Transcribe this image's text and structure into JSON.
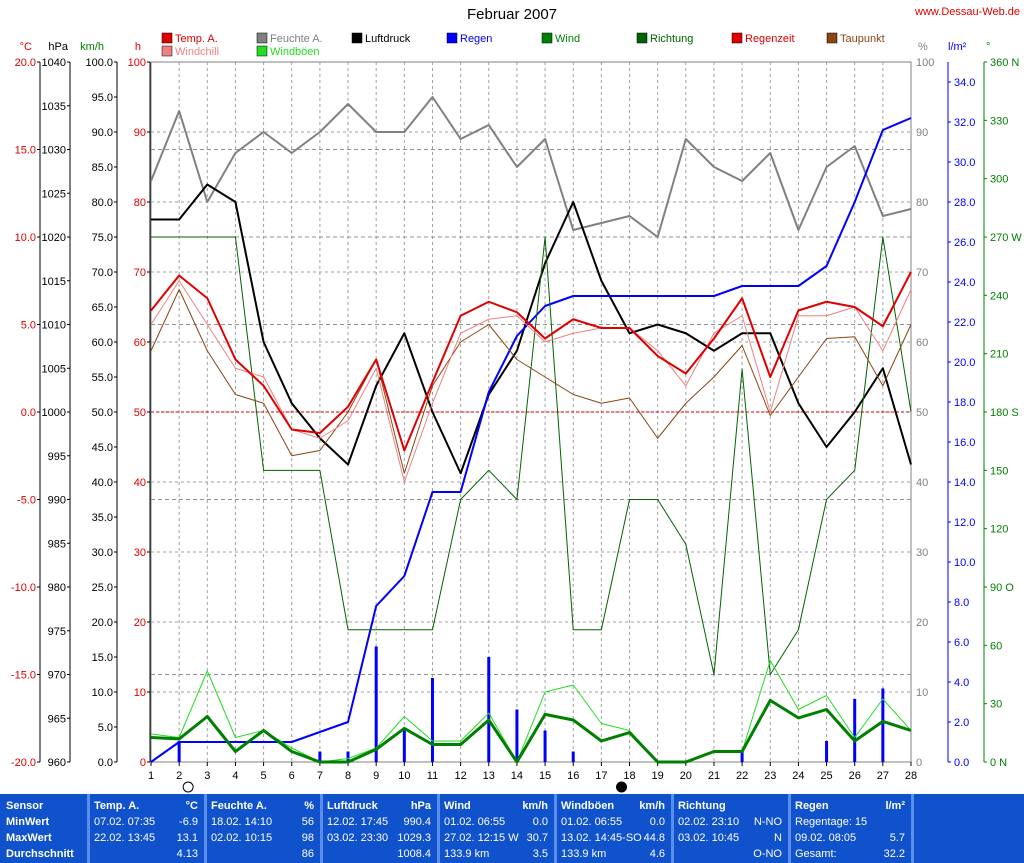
{
  "title": "Februar 2007",
  "site": "www.Dessau-Web.de",
  "legend": [
    {
      "label": "Temp. A.",
      "color": "#e00000"
    },
    {
      "label": "Windchill",
      "color": "#f08080"
    },
    {
      "label": "Feuchte A.",
      "color": "#808080"
    },
    {
      "label": "Windböen",
      "color": "#22dd22"
    },
    {
      "label": "Luftdruck",
      "color": "#000000"
    },
    {
      "label": "Regen",
      "color": "#0000ff"
    },
    {
      "label": "Wind",
      "color": "#008000"
    },
    {
      "label": "Richtung",
      "color": "#006400"
    },
    {
      "label": "Regenzeit",
      "color": "#e00000"
    },
    {
      "label": "Taupunkt",
      "color": "#8b4513"
    }
  ],
  "axis_units": {
    "temp": "°C",
    "pressure": "hPa",
    "wind": "km/h",
    "hours": "h",
    "humidity": "%",
    "rain": "l/m²",
    "direction": "°"
  },
  "chart_data": {
    "type": "line",
    "title": "Februar 2007",
    "x": [
      1,
      2,
      3,
      4,
      5,
      6,
      7,
      8,
      9,
      10,
      11,
      12,
      13,
      14,
      15,
      16,
      17,
      18,
      19,
      20,
      21,
      22,
      23,
      24,
      25,
      26,
      27,
      28
    ],
    "axes": {
      "temp": {
        "label": "°C",
        "ylim": [
          -20,
          20
        ],
        "ticks": [
          "20.0",
          "15.0",
          "10.0",
          "5.0",
          "0.0",
          "-5.0",
          "-10.0",
          "-15.0",
          "-20.0"
        ]
      },
      "pressure": {
        "label": "hPa",
        "ylim": [
          960,
          1040
        ],
        "ticks": [
          "1040",
          "1035",
          "1030",
          "1025",
          "1020",
          "1015",
          "1010",
          "1005",
          "1000",
          "995",
          "990",
          "985",
          "980",
          "975",
          "970",
          "965",
          "960"
        ]
      },
      "wind": {
        "label": "km/h",
        "ylim": [
          0,
          100
        ],
        "ticks": [
          "100.0",
          "95.0",
          "90.0",
          "85.0",
          "80.0",
          "75.0",
          "70.0",
          "65.0",
          "60.0",
          "55.0",
          "50.0",
          "45.0",
          "40.0",
          "35.0",
          "30.0",
          "25.0",
          "20.0",
          "15.0",
          "10.0",
          "5.0",
          "0.0"
        ]
      },
      "hours": {
        "label": "h",
        "ylim": [
          0,
          100
        ],
        "ticks": [
          "100",
          "90",
          "80",
          "70",
          "60",
          "50",
          "40",
          "30",
          "20",
          "10",
          "0"
        ]
      },
      "humidity": {
        "label": "%",
        "ylim": [
          0,
          100
        ],
        "ticks": [
          "100",
          "90",
          "80",
          "70",
          "60",
          "50",
          "40",
          "30",
          "20",
          "10",
          "0"
        ]
      },
      "rain": {
        "label": "l/m²",
        "ylim": [
          0,
          35
        ],
        "ticks": [
          "34.0",
          "32.0",
          "30.0",
          "28.0",
          "26.0",
          "24.0",
          "22.0",
          "20.0",
          "18.0",
          "16.0",
          "14.0",
          "12.0",
          "10.0",
          "8.0",
          "6.0",
          "4.0",
          "2.0",
          "0.0"
        ]
      },
      "direction": {
        "label": "°",
        "ylim": [
          0,
          360
        ],
        "ticks": [
          "360 N",
          "330",
          "300",
          "270 W",
          "240",
          "210",
          "180 S",
          "150",
          "120",
          "90 O",
          "60",
          "30",
          "0 N"
        ]
      }
    },
    "series": [
      {
        "name": "Feuchte A.",
        "axis": "humidity",
        "color": "#808080",
        "width": 2,
        "values": [
          83,
          93,
          80,
          87,
          90,
          87,
          90,
          94,
          90,
          90,
          95,
          89,
          91,
          85,
          89,
          76,
          77,
          78,
          75,
          89,
          85,
          83,
          87,
          76,
          85,
          88,
          78,
          79
        ]
      },
      {
        "name": "Luftdruck",
        "axis": "pressure",
        "color": "#000000",
        "width": 2,
        "values": [
          1022,
          1022,
          1026,
          1024,
          1008,
          1001,
          997,
          994,
          1003,
          1009,
          1000,
          993,
          1002,
          1007,
          1017,
          1024,
          1015,
          1009,
          1010,
          1009,
          1007,
          1009,
          1009,
          1001,
          996,
          1000,
          1005,
          994
        ]
      },
      {
        "name": "Regen",
        "axis": "rain",
        "color": "#0000ff",
        "width": 2,
        "values": [
          0,
          1.0,
          1.0,
          1.0,
          1.0,
          1.0,
          1.5,
          2.0,
          7.8,
          9.3,
          13.5,
          13.5,
          18.5,
          21.3,
          22.8,
          23.3,
          23.3,
          23.3,
          23.3,
          23.3,
          23.3,
          23.8,
          23.8,
          23.8,
          24.8,
          28.0,
          31.6,
          32.2
        ]
      },
      {
        "name": "Richtung",
        "axis": "direction",
        "color": "#006400",
        "width": 1,
        "values": [
          270,
          270,
          270,
          270,
          150,
          150,
          150,
          68,
          68,
          68,
          68,
          135,
          150,
          135,
          270,
          68,
          68,
          135,
          135,
          112,
          45,
          202,
          45,
          68,
          135,
          150,
          270,
          180
        ]
      },
      {
        "name": "Taupunkt",
        "axis": "temp",
        "color": "#8b4513",
        "width": 1,
        "values": [
          3.5,
          7.0,
          3.5,
          1.0,
          0.5,
          -2.5,
          -2.2,
          0.0,
          3.0,
          -3.5,
          1.5,
          4.0,
          5.0,
          3.0,
          2.0,
          1.0,
          0.5,
          0.8,
          -1.5,
          0.5,
          2.0,
          3.8,
          -0.2,
          2.0,
          4.2,
          4.3,
          1.5,
          5.0
        ]
      },
      {
        "name": "Windchill",
        "axis": "temp",
        "color": "#f08080",
        "width": 1,
        "values": [
          5.0,
          7.5,
          5.0,
          2.5,
          2.0,
          -1.0,
          -1.5,
          -0.5,
          2.5,
          -4.0,
          0.5,
          4.5,
          5.3,
          5.5,
          4.0,
          4.5,
          4.8,
          4.8,
          3.5,
          1.5,
          4.5,
          5.5,
          0.0,
          5.5,
          5.5,
          6.0,
          3.5,
          7.0
        ]
      },
      {
        "name": "Temp. A.",
        "axis": "temp",
        "color": "#e00000",
        "width": 2,
        "values": [
          5.8,
          7.8,
          6.5,
          3.0,
          1.5,
          -1.0,
          -1.2,
          0.3,
          3.0,
          -2.2,
          1.7,
          5.5,
          6.3,
          5.7,
          4.2,
          5.3,
          4.8,
          4.8,
          3.2,
          2.2,
          4.2,
          6.5,
          2.0,
          5.8,
          6.3,
          6.0,
          4.9,
          8.0
        ]
      },
      {
        "name": "Windböen",
        "axis": "wind",
        "color": "#22dd22",
        "width": 1,
        "values": [
          4.0,
          3.5,
          13.0,
          3.5,
          4.5,
          2.0,
          0,
          0.5,
          2.0,
          6.5,
          3.0,
          3.0,
          7.0,
          0,
          10.0,
          11.0,
          5.5,
          4.5,
          0,
          0,
          1.5,
          1.5,
          14.5,
          7.5,
          9.5,
          3.5,
          9.0,
          4.5
        ]
      },
      {
        "name": "Wind",
        "axis": "wind",
        "color": "#008000",
        "width": 3,
        "values": [
          3.5,
          3.3,
          6.5,
          1.5,
          4.5,
          1.5,
          0,
          0,
          1.8,
          4.8,
          2.5,
          2.5,
          6.0,
          0,
          6.8,
          6.0,
          3.0,
          4.2,
          0,
          0,
          1.5,
          1.5,
          8.8,
          6.3,
          7.5,
          3.0,
          5.8,
          4.5
        ]
      }
    ],
    "bars": {
      "name": "Regenzeit",
      "axis": "hours",
      "color": "#0000ff",
      "values": [
        0,
        3,
        0,
        0,
        0,
        0,
        1.5,
        1.5,
        16.5,
        4.5,
        12,
        0,
        15,
        7.5,
        4.5,
        1.5,
        0,
        0,
        0,
        0,
        0,
        1.5,
        0,
        0,
        3,
        9,
        10.5,
        0
      ]
    },
    "markers": {
      "new_moon_day": 2,
      "full_moon_day": 18,
      "temp_zero_line": 0,
      "pressure_line": 1000
    }
  },
  "stats": {
    "labels": {
      "sensor": "Sensor",
      "min": "MinWert",
      "max": "MaxWert",
      "avg": "Durchschnitt"
    },
    "columns": [
      {
        "head": "Temp. A.",
        "unit": "°C",
        "min_time": "07.02.  07:35",
        "min_val": "-6.9",
        "max_time": "22.02.  13:45",
        "max_val": "13.1",
        "avg": "4.13"
      },
      {
        "head": "Feuchte A.",
        "unit": "%",
        "min_time": "18.02.  14:10",
        "min_val": "56",
        "max_time": "02.02.  10:15",
        "max_val": "98",
        "avg": "86"
      },
      {
        "head": "Luftdruck",
        "unit": "hPa",
        "min_time": "12.02.  17:45",
        "min_val": "990.4",
        "max_time": "03.02.  23:30",
        "max_val": "1029.3",
        "avg": "1008.4"
      },
      {
        "head": "Wind",
        "unit": "km/h",
        "min_time": "01.02.  06:55",
        "min_val": "0.0",
        "max_time": "27.02.  12:15  W",
        "max_val": "30.7",
        "avg_l": "133.9 km",
        "avg": "3.5"
      },
      {
        "head": "Windböen",
        "unit": "km/h",
        "min_time": "01.02.  06:55",
        "min_val": "0.0",
        "max_time": "13.02.  14:45-SO",
        "max_val": "44.8",
        "avg_l": "133.9 km",
        "avg": "4.6"
      },
      {
        "head": "Richtung",
        "unit": "",
        "min_time": "02.02.  23:10",
        "min_val": "N-NO",
        "max_time": "03.02.  10:45",
        "max_val": "N",
        "avg": "O-NO"
      },
      {
        "head": "Regen",
        "unit": "l/m²",
        "min_time": "Regentage: 15",
        "min_val": "",
        "max_time": "09.02.  08:05",
        "max_val": "5.7",
        "avg_l": "Gesamt:",
        "avg": "32.2"
      }
    ]
  }
}
